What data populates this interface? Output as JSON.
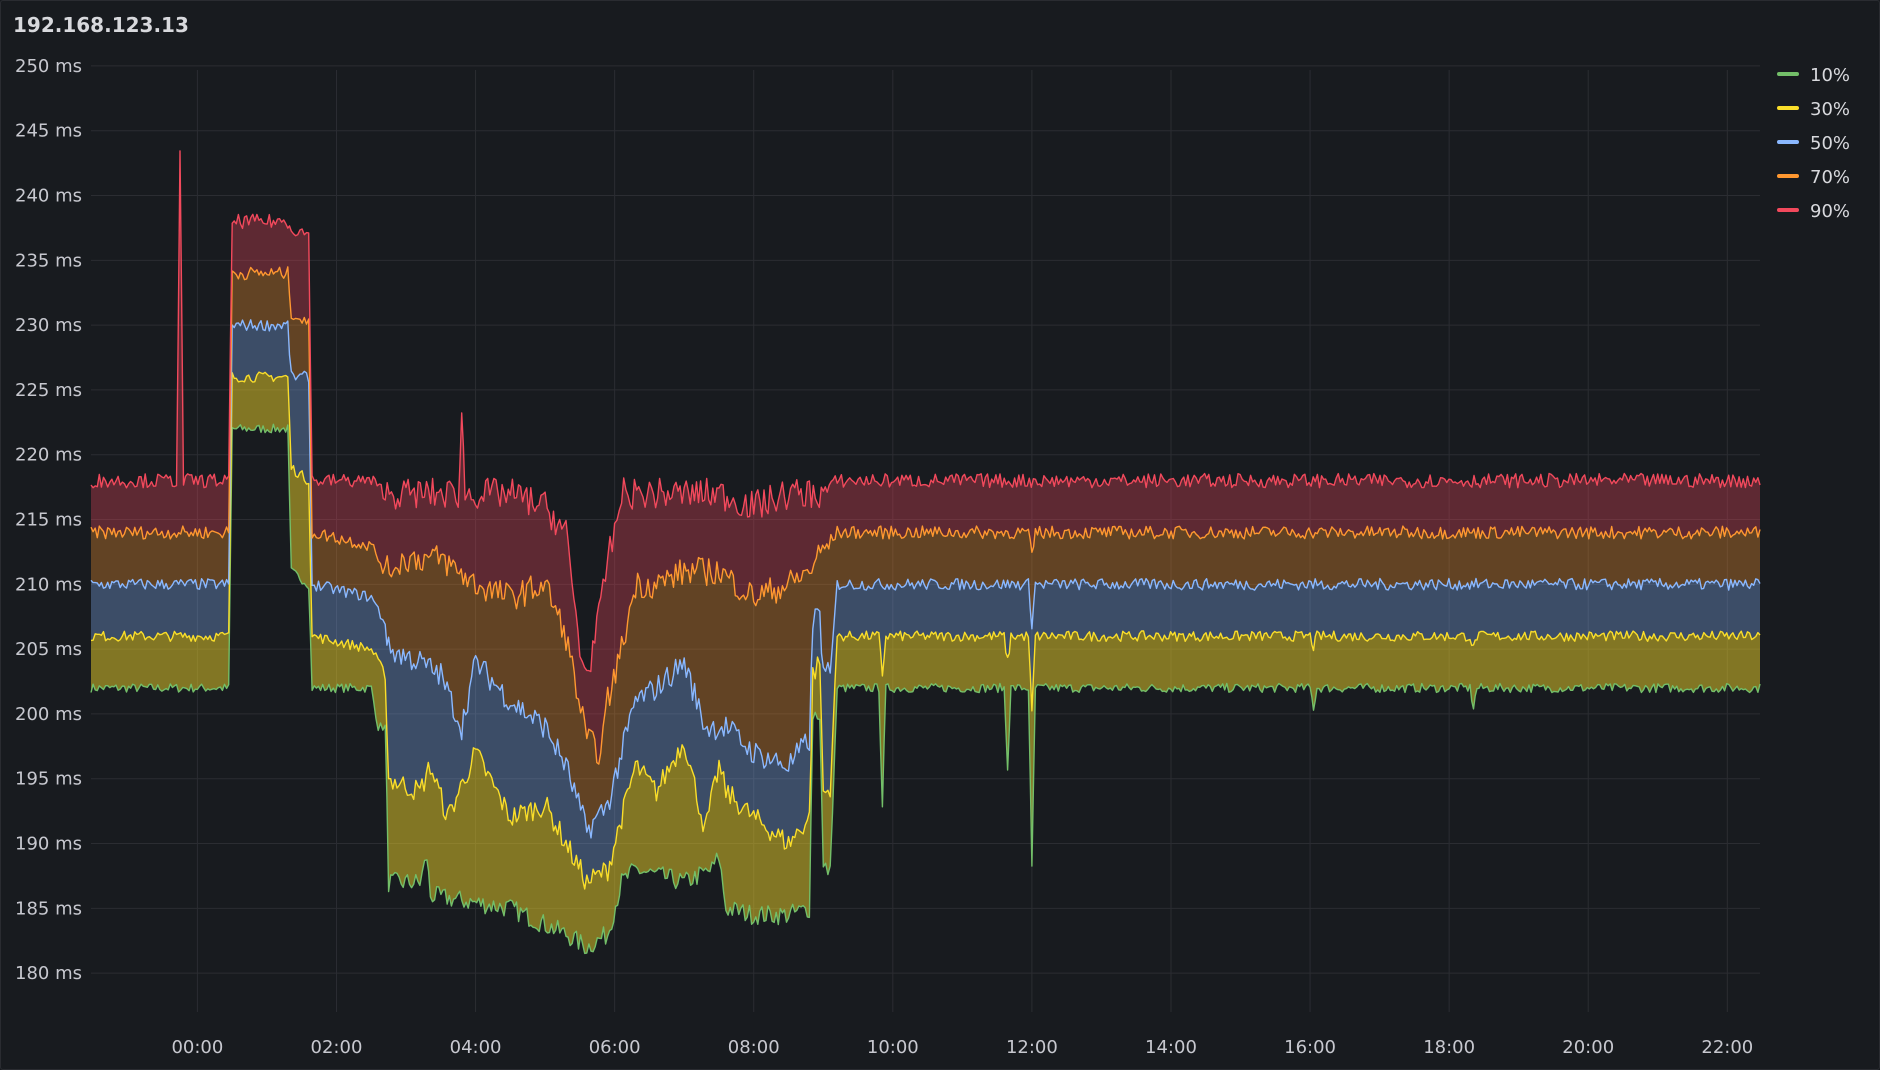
{
  "panel": {
    "title": "192.168.123.13"
  },
  "colors": {
    "p10": "#73bf69",
    "p30": "#fade2a",
    "p50": "#8ab8ff",
    "p70": "#ff9830",
    "p90": "#f2495c",
    "grid": "#2b2d32",
    "background": "#181b1f"
  },
  "chart_data": {
    "type": "area",
    "title": "192.168.123.13",
    "y_unit": "ms",
    "ylim": [
      177,
      252
    ],
    "y_ticks": [
      180,
      185,
      190,
      195,
      200,
      205,
      210,
      215,
      220,
      225,
      230,
      235,
      240,
      245,
      250
    ],
    "y_tick_labels": [
      "180 ms",
      "185 ms",
      "190 ms",
      "195 ms",
      "200 ms",
      "205 ms",
      "210 ms",
      "215 ms",
      "220 ms",
      "225 ms",
      "230 ms",
      "235 ms",
      "240 ms",
      "245 ms",
      "250 ms"
    ],
    "x_unit": "hours",
    "xlim": [
      -1.53,
      22.47
    ],
    "x_ticks": [
      0,
      2,
      4,
      6,
      8,
      10,
      12,
      14,
      16,
      18,
      20,
      22
    ],
    "x_tick_labels": [
      "00:00",
      "02:00",
      "04:00",
      "06:00",
      "08:00",
      "10:00",
      "12:00",
      "14:00",
      "16:00",
      "18:00",
      "20:00",
      "22:00"
    ],
    "legend": [
      "10%",
      "30%",
      "50%",
      "70%",
      "90%"
    ],
    "legend_position": "top-right",
    "series": [
      {
        "name": "10%",
        "color_key": "p10",
        "points": [
          [
            -1.53,
            202
          ],
          [
            0.45,
            202
          ],
          [
            0.5,
            222
          ],
          [
            1.3,
            222
          ],
          [
            1.35,
            211
          ],
          [
            1.6,
            210
          ],
          [
            1.65,
            202
          ],
          [
            2.5,
            202
          ],
          [
            2.6,
            199
          ],
          [
            2.7,
            199
          ],
          [
            2.75,
            187
          ],
          [
            3.2,
            187
          ],
          [
            3.3,
            189
          ],
          [
            3.35,
            186
          ],
          [
            4.5,
            185
          ],
          [
            5.3,
            183
          ],
          [
            5.6,
            182
          ],
          [
            5.9,
            183
          ],
          [
            6.1,
            187
          ],
          [
            6.3,
            188
          ],
          [
            7.0,
            187
          ],
          [
            7.4,
            188
          ],
          [
            7.5,
            189
          ],
          [
            7.6,
            185
          ],
          [
            8.0,
            184.5
          ],
          [
            8.5,
            184.5
          ],
          [
            8.8,
            185
          ],
          [
            8.85,
            200
          ],
          [
            8.95,
            200
          ],
          [
            9.0,
            188
          ],
          [
            9.1,
            188
          ],
          [
            9.2,
            202
          ],
          [
            9.8,
            202
          ],
          [
            9.85,
            193
          ],
          [
            9.9,
            202
          ],
          [
            11.6,
            202
          ],
          [
            11.65,
            196
          ],
          [
            11.7,
            202
          ],
          [
            11.95,
            202
          ],
          [
            12.0,
            188
          ],
          [
            12.05,
            202
          ],
          [
            16.0,
            202
          ],
          [
            16.05,
            200.5
          ],
          [
            16.1,
            202
          ],
          [
            18.3,
            202
          ],
          [
            18.35,
            200.5
          ],
          [
            18.4,
            202
          ],
          [
            22.47,
            202
          ]
        ]
      },
      {
        "name": "30%",
        "color_key": "p30",
        "points": [
          [
            -1.53,
            206
          ],
          [
            0.45,
            206
          ],
          [
            0.5,
            226
          ],
          [
            1.3,
            226
          ],
          [
            1.35,
            219
          ],
          [
            1.6,
            218
          ],
          [
            1.65,
            206
          ],
          [
            2.5,
            205
          ],
          [
            2.6,
            204
          ],
          [
            2.7,
            203
          ],
          [
            2.75,
            195
          ],
          [
            3.2,
            194
          ],
          [
            3.35,
            196
          ],
          [
            3.6,
            192
          ],
          [
            4.0,
            197
          ],
          [
            4.5,
            192
          ],
          [
            5.0,
            193
          ],
          [
            5.3,
            190
          ],
          [
            5.6,
            187
          ],
          [
            5.9,
            188
          ],
          [
            6.1,
            192
          ],
          [
            6.3,
            196
          ],
          [
            6.6,
            194
          ],
          [
            7.0,
            198
          ],
          [
            7.3,
            191
          ],
          [
            7.5,
            196
          ],
          [
            7.6,
            194
          ],
          [
            8.0,
            192
          ],
          [
            8.5,
            190
          ],
          [
            8.8,
            192
          ],
          [
            8.85,
            203
          ],
          [
            8.95,
            204
          ],
          [
            9.0,
            194
          ],
          [
            9.1,
            194
          ],
          [
            9.2,
            206
          ],
          [
            9.8,
            206
          ],
          [
            9.85,
            203
          ],
          [
            9.9,
            206
          ],
          [
            11.6,
            206
          ],
          [
            11.65,
            204
          ],
          [
            11.7,
            206
          ],
          [
            11.95,
            206
          ],
          [
            12.0,
            200
          ],
          [
            12.05,
            206
          ],
          [
            16.0,
            206
          ],
          [
            16.05,
            205.2
          ],
          [
            16.1,
            206
          ],
          [
            18.3,
            206
          ],
          [
            18.35,
            205
          ],
          [
            18.4,
            206
          ],
          [
            22.47,
            206
          ]
        ]
      },
      {
        "name": "50%",
        "color_key": "p50",
        "points": [
          [
            -1.53,
            210
          ],
          [
            0.45,
            210
          ],
          [
            0.5,
            230
          ],
          [
            1.3,
            230
          ],
          [
            1.35,
            226
          ],
          [
            1.6,
            226
          ],
          [
            1.65,
            210
          ],
          [
            2.5,
            209
          ],
          [
            2.6,
            208
          ],
          [
            2.7,
            207
          ],
          [
            2.75,
            205
          ],
          [
            3.2,
            204
          ],
          [
            3.5,
            203
          ],
          [
            3.8,
            199
          ],
          [
            4.0,
            204
          ],
          [
            4.5,
            201
          ],
          [
            5.0,
            199
          ],
          [
            5.3,
            196
          ],
          [
            5.6,
            191
          ],
          [
            5.9,
            193
          ],
          [
            6.1,
            197
          ],
          [
            6.3,
            201
          ],
          [
            6.6,
            202
          ],
          [
            7.0,
            204
          ],
          [
            7.3,
            199
          ],
          [
            7.6,
            199
          ],
          [
            8.0,
            197
          ],
          [
            8.5,
            196
          ],
          [
            8.8,
            198
          ],
          [
            8.85,
            207
          ],
          [
            8.95,
            208
          ],
          [
            9.0,
            203
          ],
          [
            9.1,
            203
          ],
          [
            9.2,
            210
          ],
          [
            11.95,
            210
          ],
          [
            12.0,
            207
          ],
          [
            12.05,
            210
          ],
          [
            22.47,
            210
          ]
        ]
      },
      {
        "name": "70%",
        "color_key": "p70",
        "points": [
          [
            -1.53,
            214
          ],
          [
            0.45,
            214
          ],
          [
            0.5,
            234
          ],
          [
            1.3,
            234
          ],
          [
            1.35,
            231
          ],
          [
            1.6,
            230
          ],
          [
            1.65,
            214
          ],
          [
            2.5,
            213
          ],
          [
            2.6,
            212
          ],
          [
            2.7,
            211
          ],
          [
            3.0,
            212
          ],
          [
            3.5,
            212
          ],
          [
            4.0,
            210
          ],
          [
            4.5,
            209
          ],
          [
            5.0,
            210
          ],
          [
            5.3,
            206
          ],
          [
            5.6,
            198
          ],
          [
            5.8,
            197
          ],
          [
            5.9,
            201
          ],
          [
            6.1,
            205
          ],
          [
            6.3,
            210
          ],
          [
            6.6,
            210
          ],
          [
            7.0,
            211
          ],
          [
            7.5,
            211
          ],
          [
            8.0,
            209
          ],
          [
            8.5,
            210
          ],
          [
            8.8,
            211
          ],
          [
            8.9,
            212
          ],
          [
            9.2,
            214
          ],
          [
            11.95,
            214
          ],
          [
            12.0,
            212
          ],
          [
            12.05,
            214
          ],
          [
            22.47,
            214
          ]
        ]
      },
      {
        "name": "90%",
        "color_key": "p90",
        "points": [
          [
            -1.53,
            218
          ],
          [
            -0.3,
            218
          ],
          [
            -0.25,
            243
          ],
          [
            -0.2,
            218
          ],
          [
            0.45,
            218
          ],
          [
            0.5,
            238
          ],
          [
            1.3,
            238
          ],
          [
            1.35,
            237.5
          ],
          [
            1.6,
            237
          ],
          [
            1.65,
            218
          ],
          [
            2.5,
            218
          ],
          [
            2.7,
            217
          ],
          [
            3.0,
            217
          ],
          [
            3.5,
            217
          ],
          [
            3.75,
            217
          ],
          [
            3.8,
            223
          ],
          [
            3.85,
            217
          ],
          [
            4.5,
            217
          ],
          [
            5.0,
            216
          ],
          [
            5.3,
            214
          ],
          [
            5.5,
            205
          ],
          [
            5.6,
            203
          ],
          [
            5.8,
            208
          ],
          [
            5.9,
            212
          ],
          [
            6.0,
            214
          ],
          [
            6.1,
            217
          ],
          [
            6.5,
            217
          ],
          [
            7.0,
            217
          ],
          [
            7.5,
            217
          ],
          [
            8.0,
            216
          ],
          [
            8.5,
            217
          ],
          [
            8.8,
            217
          ],
          [
            9.0,
            217
          ],
          [
            9.2,
            218
          ],
          [
            22.47,
            218
          ]
        ]
      }
    ]
  }
}
